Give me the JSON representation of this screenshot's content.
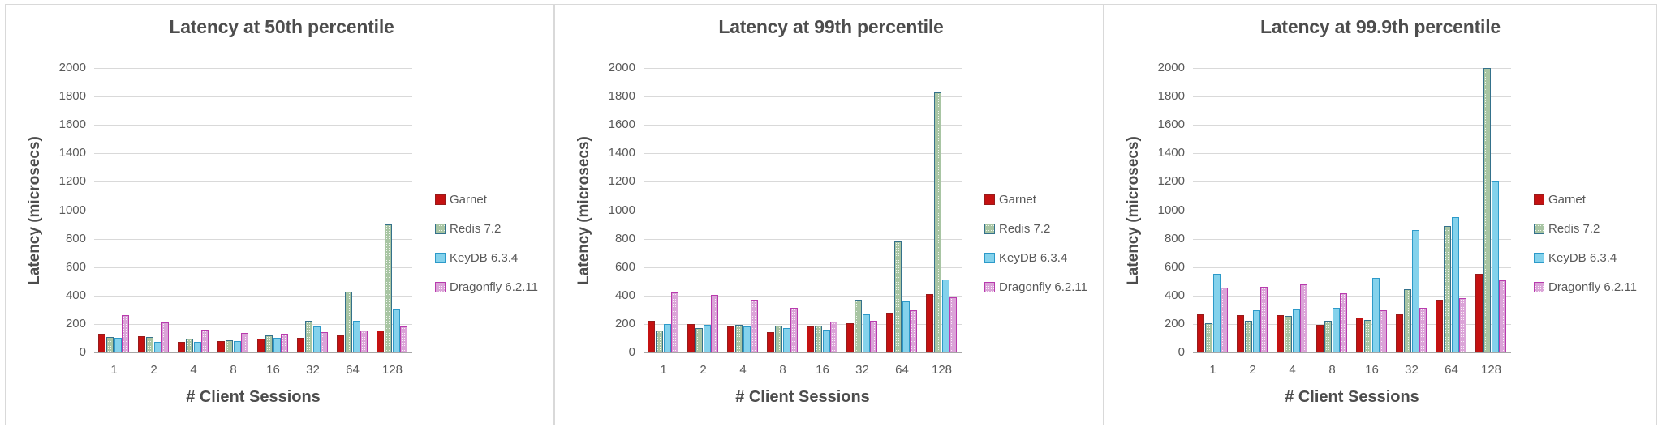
{
  "page": {
    "background": "#ffffff",
    "panel_border": "#d9d9d9",
    "gridline_color": "#d9d9d9",
    "axis_line_color": "#a6a6a6",
    "title_color": "#4d4d4d",
    "tick_color": "#595959"
  },
  "series_styles": [
    {
      "name": "Garnet",
      "fill": "#c41111",
      "border": "#971b1b",
      "pattern": false
    },
    {
      "name": "Redis 7.2",
      "fill": "#a8c5a3",
      "border": "#34718b",
      "pattern": true
    },
    {
      "name": "KeyDB 6.3.4",
      "fill": "#84d2ec",
      "border": "#2d9ac9",
      "pattern": false
    },
    {
      "name": "Dragonfly 6.2.11",
      "fill": "#dba4d8",
      "border": "#b83bad",
      "pattern": true
    }
  ],
  "chart_data": [
    {
      "type": "bar",
      "title": "Latency at 50th percentile",
      "xlabel": "# Client Sessions",
      "ylabel": "Latency (microsecs)",
      "ylim": [
        0,
        2000
      ],
      "ytick_step": 200,
      "grid": true,
      "legend_position": "right",
      "categories": [
        "1",
        "2",
        "4",
        "8",
        "16",
        "32",
        "64",
        "128"
      ],
      "series": [
        {
          "name": "Garnet",
          "values": [
            130,
            115,
            75,
            80,
            95,
            105,
            120,
            155
          ]
        },
        {
          "name": "Redis 7.2",
          "values": [
            110,
            110,
            95,
            85,
            120,
            225,
            430,
            900
          ]
        },
        {
          "name": "KeyDB 6.3.4",
          "values": [
            100,
            75,
            75,
            80,
            105,
            180,
            225,
            300
          ]
        },
        {
          "name": "Dragonfly 6.2.11",
          "values": [
            260,
            210,
            160,
            135,
            130,
            140,
            155,
            180
          ]
        }
      ]
    },
    {
      "type": "bar",
      "title": "Latency at 99th percentile",
      "xlabel": "# Client Sessions",
      "ylabel": "Latency (microsecs)",
      "ylim": [
        0,
        2000
      ],
      "ytick_step": 200,
      "grid": true,
      "legend_position": "right",
      "categories": [
        "1",
        "2",
        "4",
        "8",
        "16",
        "32",
        "64",
        "128"
      ],
      "series": [
        {
          "name": "Garnet",
          "values": [
            220,
            200,
            185,
            145,
            185,
            205,
            280,
            410
          ]
        },
        {
          "name": "Redis 7.2",
          "values": [
            155,
            170,
            195,
            190,
            190,
            370,
            780,
            1830
          ]
        },
        {
          "name": "KeyDB 6.3.4",
          "values": [
            200,
            195,
            185,
            170,
            160,
            270,
            360,
            510
          ]
        },
        {
          "name": "Dragonfly 6.2.11",
          "values": [
            420,
            405,
            370,
            315,
            215,
            220,
            295,
            390
          ]
        }
      ]
    },
    {
      "type": "bar",
      "title": "Latency at 99.9th percentile",
      "xlabel": "# Client Sessions",
      "ylabel": "Latency (microsecs)",
      "ylim": [
        0,
        2000
      ],
      "ytick_step": 200,
      "grid": true,
      "legend_position": "right",
      "categories": [
        "1",
        "2",
        "4",
        "8",
        "16",
        "32",
        "64",
        "128"
      ],
      "series": [
        {
          "name": "Garnet",
          "values": [
            270,
            260,
            260,
            195,
            245,
            270,
            370,
            550
          ]
        },
        {
          "name": "Redis 7.2",
          "values": [
            205,
            225,
            255,
            225,
            230,
            445,
            890,
            2000
          ]
        },
        {
          "name": "KeyDB 6.3.4",
          "values": [
            550,
            295,
            300,
            315,
            525,
            860,
            950,
            1200
          ]
        },
        {
          "name": "Dragonfly 6.2.11",
          "values": [
            455,
            460,
            480,
            415,
            295,
            315,
            380,
            505
          ]
        }
      ]
    }
  ]
}
